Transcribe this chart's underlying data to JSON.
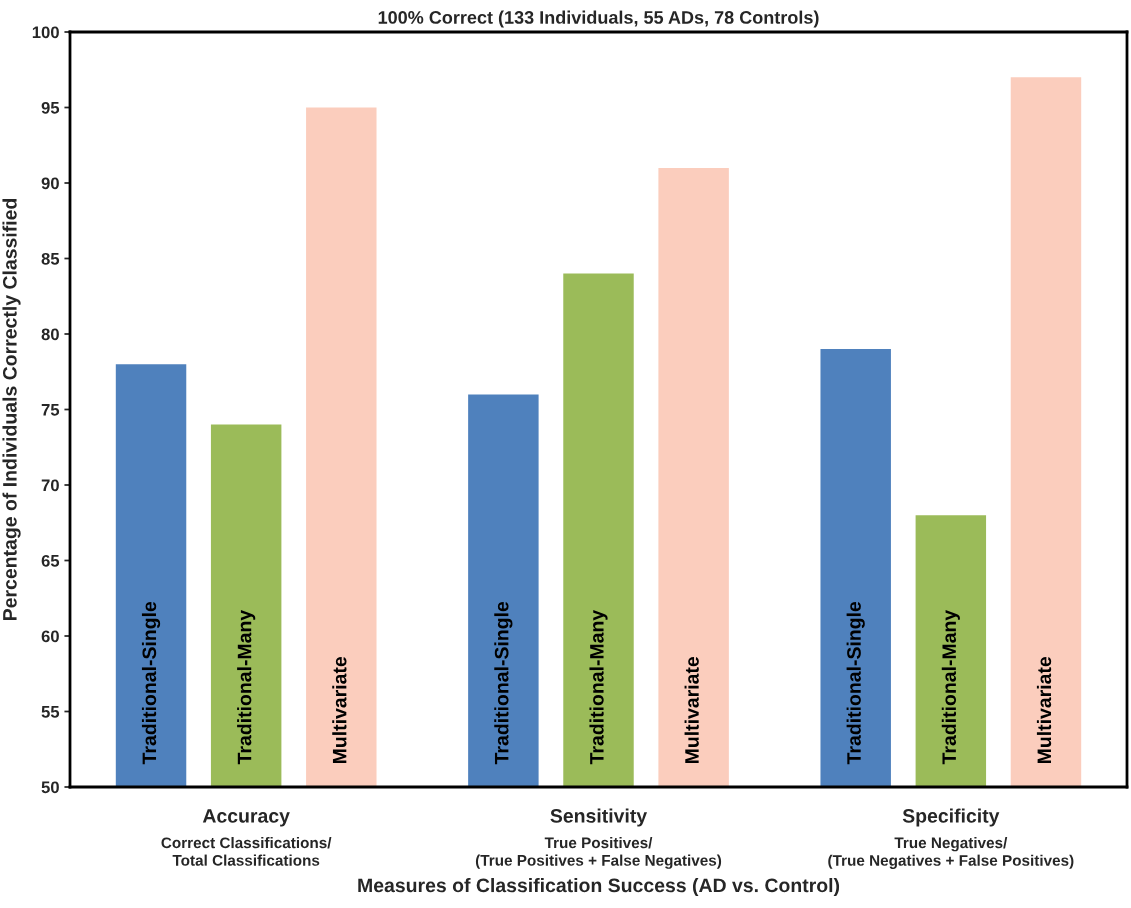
{
  "chart_data": {
    "type": "bar",
    "title": "100% Correct (133 Individuals, 55 ADs, 78 Controls)",
    "xlabel": "Measures of Classification Success (AD vs. Control)",
    "ylabel": "Percentage of Individuals Correctly Classified",
    "categories": [
      "Accuracy\nCorrect Classifications/\nTotal Classifications",
      "Sensitivity\nTrue Positives/\n(True Positives + False Negatives)",
      "Specificity\nTrue Negatives/\n(True Negatives + False Positives)"
    ],
    "series": [
      {
        "name": "Traditional-Single",
        "color": "#4f81bd",
        "values": [
          78,
          76,
          79
        ]
      },
      {
        "name": "Traditional-Many",
        "color": "#9bbb59",
        "values": [
          74,
          84,
          68
        ]
      },
      {
        "name": "Multivariate",
        "color": "#fbcdbd",
        "values": [
          95,
          91,
          97
        ]
      }
    ],
    "ylim": [
      50,
      100
    ],
    "yticks": [
      50,
      55,
      60,
      65,
      70,
      75,
      80,
      85,
      90,
      95,
      100
    ],
    "grid": false,
    "legend": false
  }
}
